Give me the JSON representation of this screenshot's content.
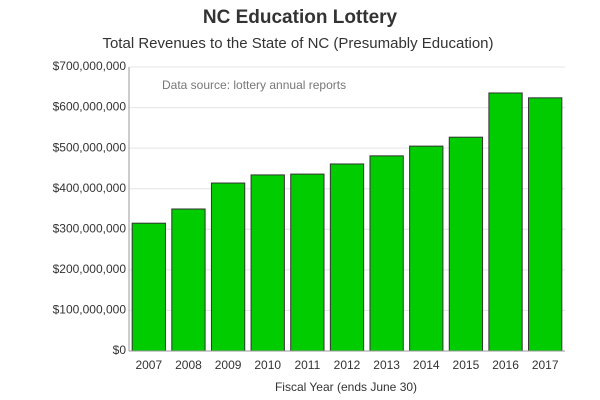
{
  "chart_data": {
    "type": "bar",
    "title": "NC Education Lottery",
    "subtitle": "Total Revenues to the State of NC (Presumably Education)",
    "annotation": "Data source: lottery annual reports",
    "x_label": "Fiscal Year (ends June 30)",
    "categories": [
      "2007",
      "2008",
      "2009",
      "2010",
      "2011",
      "2012",
      "2013",
      "2014",
      "2015",
      "2016",
      "2017"
    ],
    "values": [
      315000000,
      350000000,
      414000000,
      434000000,
      436000000,
      461000000,
      481000000,
      505000000,
      527000000,
      636000000,
      624000000
    ],
    "color": "#00cc00",
    "ylim": [
      0,
      700000000
    ],
    "yticks": [
      {
        "value": 0,
        "label": "$0"
      },
      {
        "value": 100000000,
        "label": "$100,000,000"
      },
      {
        "value": 200000000,
        "label": "$200,000,000"
      },
      {
        "value": 300000000,
        "label": "$300,000,000"
      },
      {
        "value": 400000000,
        "label": "$400,000,000"
      },
      {
        "value": 500000000,
        "label": "$500,000,000"
      },
      {
        "value": 600000000,
        "label": "$600,000,000"
      },
      {
        "value": 700000000,
        "label": "$700,000,000"
      }
    ],
    "grid": true
  }
}
